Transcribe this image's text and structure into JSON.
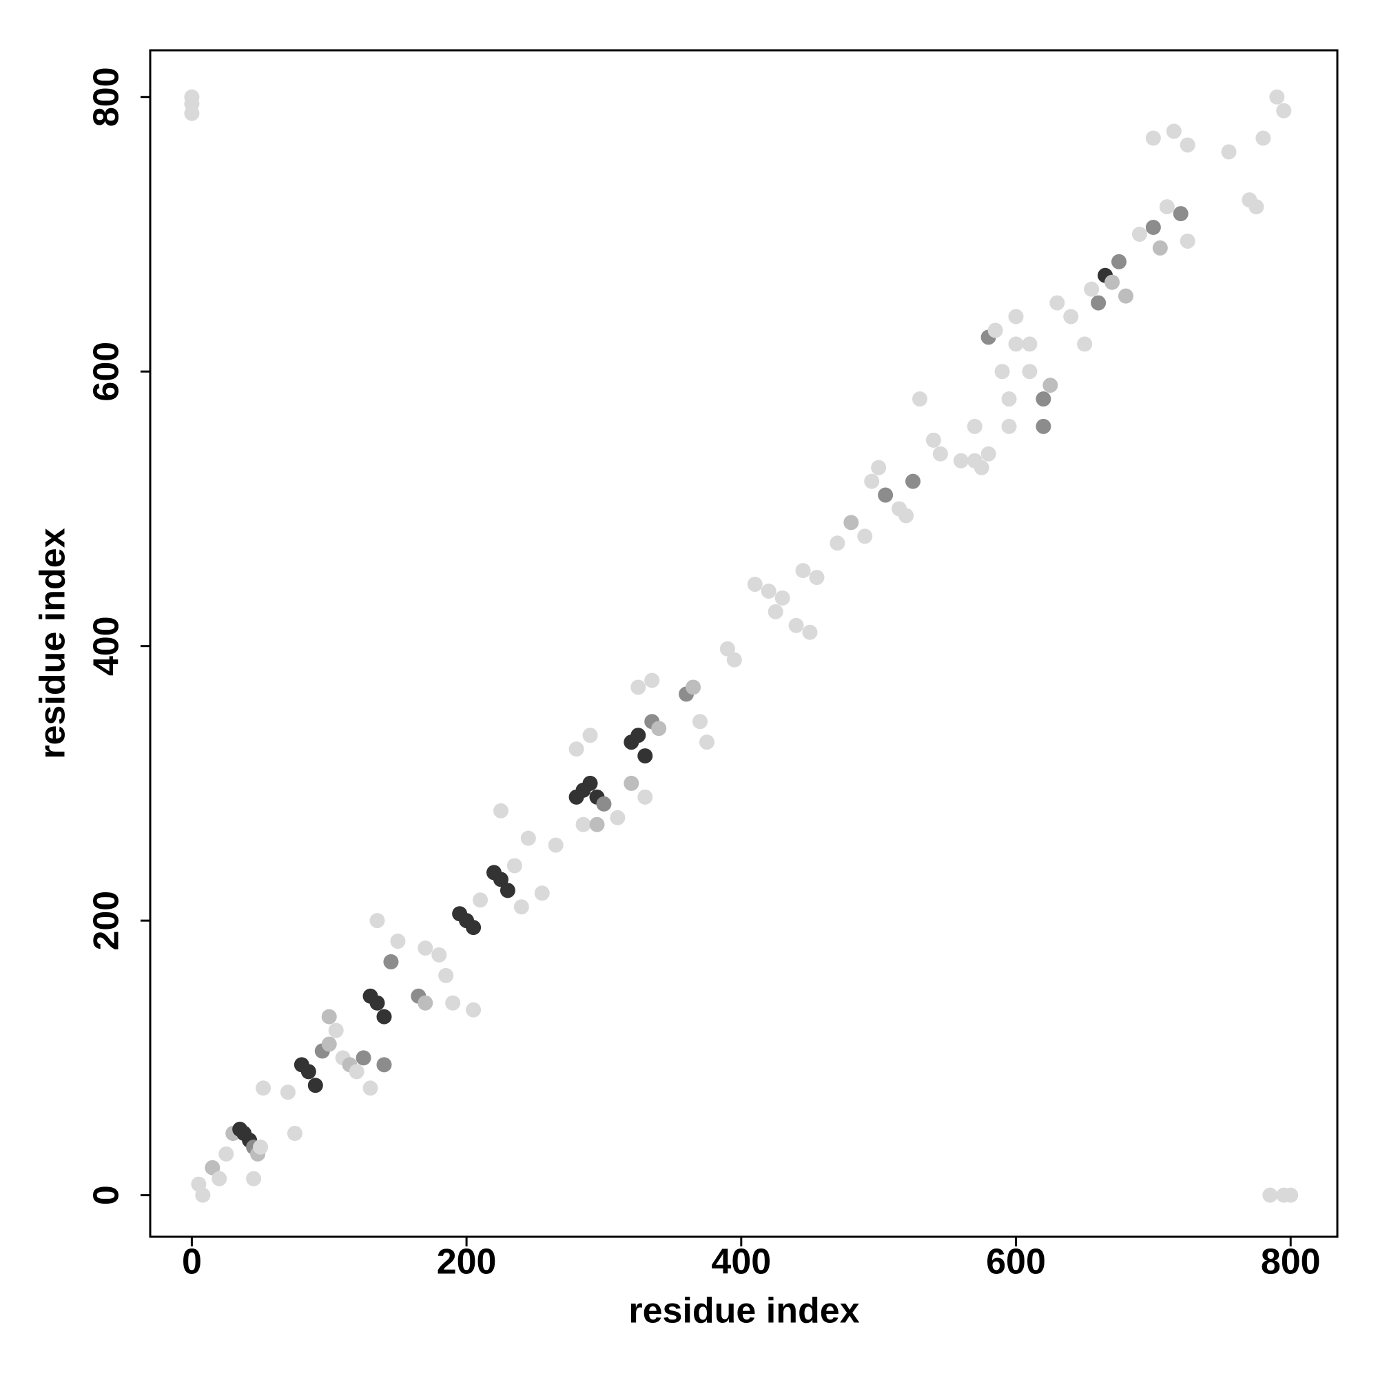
{
  "chart_data": {
    "type": "scatter",
    "xlabel": "residue index",
    "ylabel": "residue index",
    "xlim": [
      -30.3,
      834
    ],
    "ylim": [
      -30.3,
      834
    ],
    "xticks": [
      0,
      200,
      400,
      600,
      800
    ],
    "yticks": [
      0,
      200,
      400,
      600,
      800
    ],
    "grid": false,
    "x": [
      0,
      0,
      0,
      5,
      8,
      15,
      20,
      25,
      30,
      35,
      38,
      42,
      45,
      48,
      50,
      45,
      52,
      70,
      75,
      80,
      85,
      90,
      95,
      100,
      100,
      105,
      110,
      115,
      120,
      125,
      130,
      130,
      135,
      140,
      145,
      150,
      135,
      140,
      165,
      170,
      170,
      180,
      185,
      195,
      200,
      205,
      190,
      205,
      210,
      220,
      225,
      230,
      235,
      245,
      240,
      255,
      265,
      225,
      280,
      285,
      290,
      295,
      300,
      280,
      290,
      285,
      295,
      310,
      320,
      325,
      330,
      335,
      340,
      325,
      335,
      360,
      365,
      370,
      375,
      320,
      330,
      390,
      395,
      410,
      420,
      425,
      430,
      440,
      450,
      445,
      455,
      470,
      480,
      490,
      495,
      500,
      505,
      515,
      520,
      525,
      530,
      540,
      545,
      560,
      575,
      570,
      580,
      585,
      590,
      595,
      600,
      610,
      620,
      625,
      630,
      640,
      650,
      655,
      665,
      660,
      670,
      675,
      680,
      690,
      700,
      705,
      710,
      720,
      725,
      700,
      715,
      725,
      755,
      770,
      775,
      780,
      790,
      795,
      785,
      795,
      800,
      620,
      610,
      600,
      595,
      570,
      580
    ],
    "values": [
      800,
      795,
      788,
      8,
      0,
      20,
      12,
      30,
      45,
      48,
      45,
      40,
      35,
      30,
      35,
      12,
      78,
      75,
      45,
      95,
      90,
      80,
      105,
      110,
      130,
      120,
      100,
      95,
      90,
      100,
      78,
      145,
      140,
      130,
      170,
      185,
      200,
      95,
      145,
      140,
      180,
      175,
      160,
      205,
      200,
      195,
      140,
      135,
      215,
      235,
      230,
      222,
      240,
      260,
      210,
      220,
      255,
      280,
      290,
      295,
      300,
      290,
      285,
      325,
      335,
      270,
      270,
      275,
      330,
      335,
      320,
      345,
      340,
      370,
      375,
      365,
      370,
      345,
      330,
      300,
      290,
      398,
      390,
      445,
      440,
      425,
      435,
      415,
      410,
      455,
      450,
      475,
      490,
      480,
      520,
      530,
      510,
      500,
      495,
      520,
      580,
      550,
      540,
      535,
      530,
      560,
      625,
      630,
      600,
      580,
      620,
      600,
      580,
      590,
      650,
      640,
      620,
      660,
      670,
      650,
      665,
      680,
      655,
      700,
      705,
      690,
      720,
      715,
      695,
      770,
      775,
      765,
      760,
      725,
      720,
      770,
      800,
      790,
      0,
      0,
      0,
      560,
      620,
      640,
      560,
      535,
      540
    ],
    "colors": [
      "#d9d9d9",
      "#d9d9d9",
      "#d9d9d9",
      "#d9d9d9",
      "#d9d9d9",
      "#bdbdbd",
      "#d9d9d9",
      "#d9d9d9",
      "#bdbdbd",
      "#333333",
      "#333333",
      "#333333",
      "#8c8c8c",
      "#bdbdbd",
      "#d9d9d9",
      "#d9d9d9",
      "#d9d9d9",
      "#d9d9d9",
      "#d9d9d9",
      "#333333",
      "#333333",
      "#333333",
      "#8c8c8c",
      "#bdbdbd",
      "#bdbdbd",
      "#d9d9d9",
      "#d9d9d9",
      "#bdbdbd",
      "#d9d9d9",
      "#8c8c8c",
      "#d9d9d9",
      "#333333",
      "#333333",
      "#333333",
      "#8c8c8c",
      "#d9d9d9",
      "#d9d9d9",
      "#8c8c8c",
      "#8c8c8c",
      "#bdbdbd",
      "#d9d9d9",
      "#d9d9d9",
      "#d9d9d9",
      "#333333",
      "#333333",
      "#333333",
      "#d9d9d9",
      "#d9d9d9",
      "#d9d9d9",
      "#333333",
      "#333333",
      "#333333",
      "#d9d9d9",
      "#d9d9d9",
      "#d9d9d9",
      "#d9d9d9",
      "#d9d9d9",
      "#d9d9d9",
      "#333333",
      "#333333",
      "#333333",
      "#333333",
      "#8c8c8c",
      "#d9d9d9",
      "#d9d9d9",
      "#d9d9d9",
      "#bdbdbd",
      "#d9d9d9",
      "#333333",
      "#333333",
      "#333333",
      "#8c8c8c",
      "#bdbdbd",
      "#d9d9d9",
      "#d9d9d9",
      "#8c8c8c",
      "#bdbdbd",
      "#d9d9d9",
      "#d9d9d9",
      "#bdbdbd",
      "#d9d9d9",
      "#d9d9d9",
      "#d9d9d9",
      "#d9d9d9",
      "#d9d9d9",
      "#d9d9d9",
      "#d9d9d9",
      "#d9d9d9",
      "#d9d9d9",
      "#d9d9d9",
      "#d9d9d9",
      "#d9d9d9",
      "#bdbdbd",
      "#d9d9d9",
      "#d9d9d9",
      "#d9d9d9",
      "#8c8c8c",
      "#d9d9d9",
      "#d9d9d9",
      "#8c8c8c",
      "#d9d9d9",
      "#d9d9d9",
      "#d9d9d9",
      "#d9d9d9",
      "#d9d9d9",
      "#d9d9d9",
      "#8c8c8c",
      "#d9d9d9",
      "#d9d9d9",
      "#d9d9d9",
      "#d9d9d9",
      "#d9d9d9",
      "#8c8c8c",
      "#bdbdbd",
      "#d9d9d9",
      "#d9d9d9",
      "#d9d9d9",
      "#d9d9d9",
      "#333333",
      "#8c8c8c",
      "#bdbdbd",
      "#8c8c8c",
      "#bdbdbd",
      "#d9d9d9",
      "#8c8c8c",
      "#bdbdbd",
      "#d9d9d9",
      "#8c8c8c",
      "#d9d9d9",
      "#d9d9d9",
      "#d9d9d9",
      "#d9d9d9",
      "#d9d9d9",
      "#d9d9d9",
      "#d9d9d9",
      "#d9d9d9",
      "#d9d9d9",
      "#d9d9d9",
      "#d9d9d9",
      "#d9d9d9",
      "#d9d9d9",
      "#8c8c8c",
      "#d9d9d9",
      "#d9d9d9",
      "#d9d9d9",
      "#d9d9d9",
      "#d9d9d9"
    ]
  }
}
